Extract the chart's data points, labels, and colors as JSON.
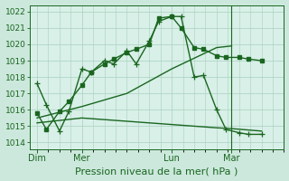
{
  "bg_color": "#cce8dc",
  "plot_bg_color": "#d8f0e8",
  "grid_color": "#aacfbe",
  "line_color": "#1a6620",
  "ylabel_ticks": [
    1014,
    1015,
    1016,
    1017,
    1018,
    1019,
    1020,
    1021,
    1022
  ],
  "ylim": [
    1013.6,
    1022.4
  ],
  "xlabel": "Pression niveau de la mer( hPa )",
  "xlabel_fontsize": 8,
  "xtick_labels": [
    "Dim",
    "Mer",
    "Lun",
    "Mar"
  ],
  "xtick_positions": [
    0,
    24,
    72,
    104
  ],
  "xlim": [
    -4,
    132
  ],
  "series1_x": [
    0,
    5,
    12,
    17,
    24,
    29,
    36,
    41,
    48,
    53,
    60,
    65,
    72,
    77,
    84,
    89,
    96,
    101,
    108,
    113,
    120
  ],
  "series1_y": [
    1017.6,
    1016.3,
    1014.7,
    1015.9,
    1018.5,
    1018.3,
    1019.0,
    1018.8,
    1019.6,
    1018.8,
    1020.2,
    1021.4,
    1021.7,
    1021.7,
    1018.0,
    1018.1,
    1016.0,
    1014.8,
    1014.6,
    1014.5,
    1014.5
  ],
  "series2_x": [
    0,
    5,
    12,
    17,
    24,
    29,
    36,
    41,
    48,
    53,
    60,
    65,
    72,
    77,
    84,
    89,
    96,
    101,
    108,
    113,
    120
  ],
  "series2_y": [
    1015.8,
    1014.8,
    1015.9,
    1016.5,
    1017.5,
    1018.3,
    1018.8,
    1019.1,
    1019.5,
    1019.7,
    1020.0,
    1021.6,
    1021.7,
    1021.0,
    1019.8,
    1019.7,
    1019.3,
    1019.2,
    1019.2,
    1019.1,
    1019.0
  ],
  "series3_x": [
    0,
    24,
    48,
    72,
    96,
    104
  ],
  "series3_y": [
    1015.5,
    1016.2,
    1017.0,
    1018.5,
    1019.8,
    1019.9
  ],
  "series4_x": [
    0,
    24,
    48,
    72,
    96,
    104,
    120
  ],
  "series4_y": [
    1015.2,
    1015.5,
    1015.3,
    1015.1,
    1014.9,
    1014.85,
    1014.7
  ],
  "vline_x": 104,
  "marker_size": 3,
  "line_width": 1.0
}
